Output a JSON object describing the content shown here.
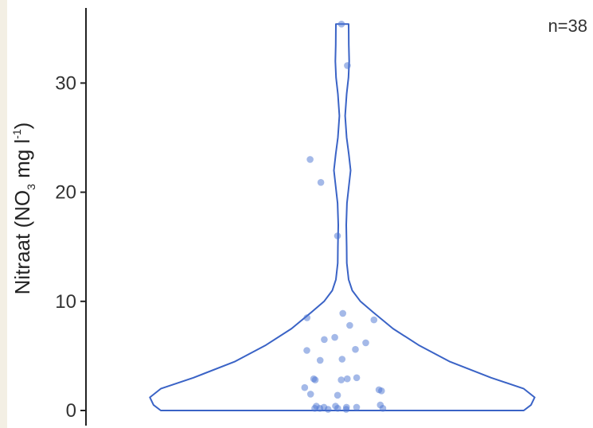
{
  "chart_data": {
    "type": "violin",
    "annotation": "n=38",
    "ylabel": {
      "prefix": "Nitraat (NO",
      "subscript": "3",
      "middle": " mg l",
      "superscript": "-1",
      "suffix": ")"
    },
    "ylim": [
      0,
      36
    ],
    "yticks": [
      0,
      10,
      20,
      30
    ],
    "ytick_labels": [
      "0",
      "10",
      "20",
      "30"
    ],
    "grid": false,
    "colors": {
      "violin_stroke": "#3a63c6",
      "point_fill": "#4a74d2",
      "axis": "#222222"
    },
    "violin_density": [
      {
        "y": 0.0,
        "w": 1.0
      },
      {
        "y": 0.5,
        "w": 1.04
      },
      {
        "y": 1.2,
        "w": 1.06
      },
      {
        "y": 2.0,
        "w": 1.0
      },
      {
        "y": 3.0,
        "w": 0.82
      },
      {
        "y": 4.5,
        "w": 0.59
      },
      {
        "y": 6.0,
        "w": 0.42
      },
      {
        "y": 7.5,
        "w": 0.28
      },
      {
        "y": 9.0,
        "w": 0.17
      },
      {
        "y": 10.0,
        "w": 0.1
      },
      {
        "y": 11.0,
        "w": 0.055
      },
      {
        "y": 12.0,
        "w": 0.035
      },
      {
        "y": 13.5,
        "w": 0.025
      },
      {
        "y": 15.0,
        "w": 0.024
      },
      {
        "y": 17.0,
        "w": 0.022
      },
      {
        "y": 19.0,
        "w": 0.026
      },
      {
        "y": 20.5,
        "w": 0.036
      },
      {
        "y": 22.0,
        "w": 0.046
      },
      {
        "y": 23.5,
        "w": 0.036
      },
      {
        "y": 25.0,
        "w": 0.024
      },
      {
        "y": 27.0,
        "w": 0.016
      },
      {
        "y": 29.0,
        "w": 0.024
      },
      {
        "y": 30.5,
        "w": 0.034
      },
      {
        "y": 32.0,
        "w": 0.038
      },
      {
        "y": 33.5,
        "w": 0.036
      },
      {
        "y": 35.4,
        "w": 0.035
      }
    ],
    "points": [
      35.4,
      31.6,
      23.0,
      20.9,
      16.0,
      8.9,
      8.5,
      8.3,
      7.8,
      6.7,
      6.5,
      6.2,
      5.6,
      5.5,
      4.7,
      4.6,
      3.0,
      2.9,
      2.9,
      2.8,
      2.8,
      2.1,
      1.9,
      1.8,
      1.5,
      1.4,
      0.5,
      0.4,
      0.4,
      0.3,
      0.3,
      0.3,
      0.2,
      0.2,
      0.2,
      0.2,
      0.1,
      0.1
    ]
  }
}
